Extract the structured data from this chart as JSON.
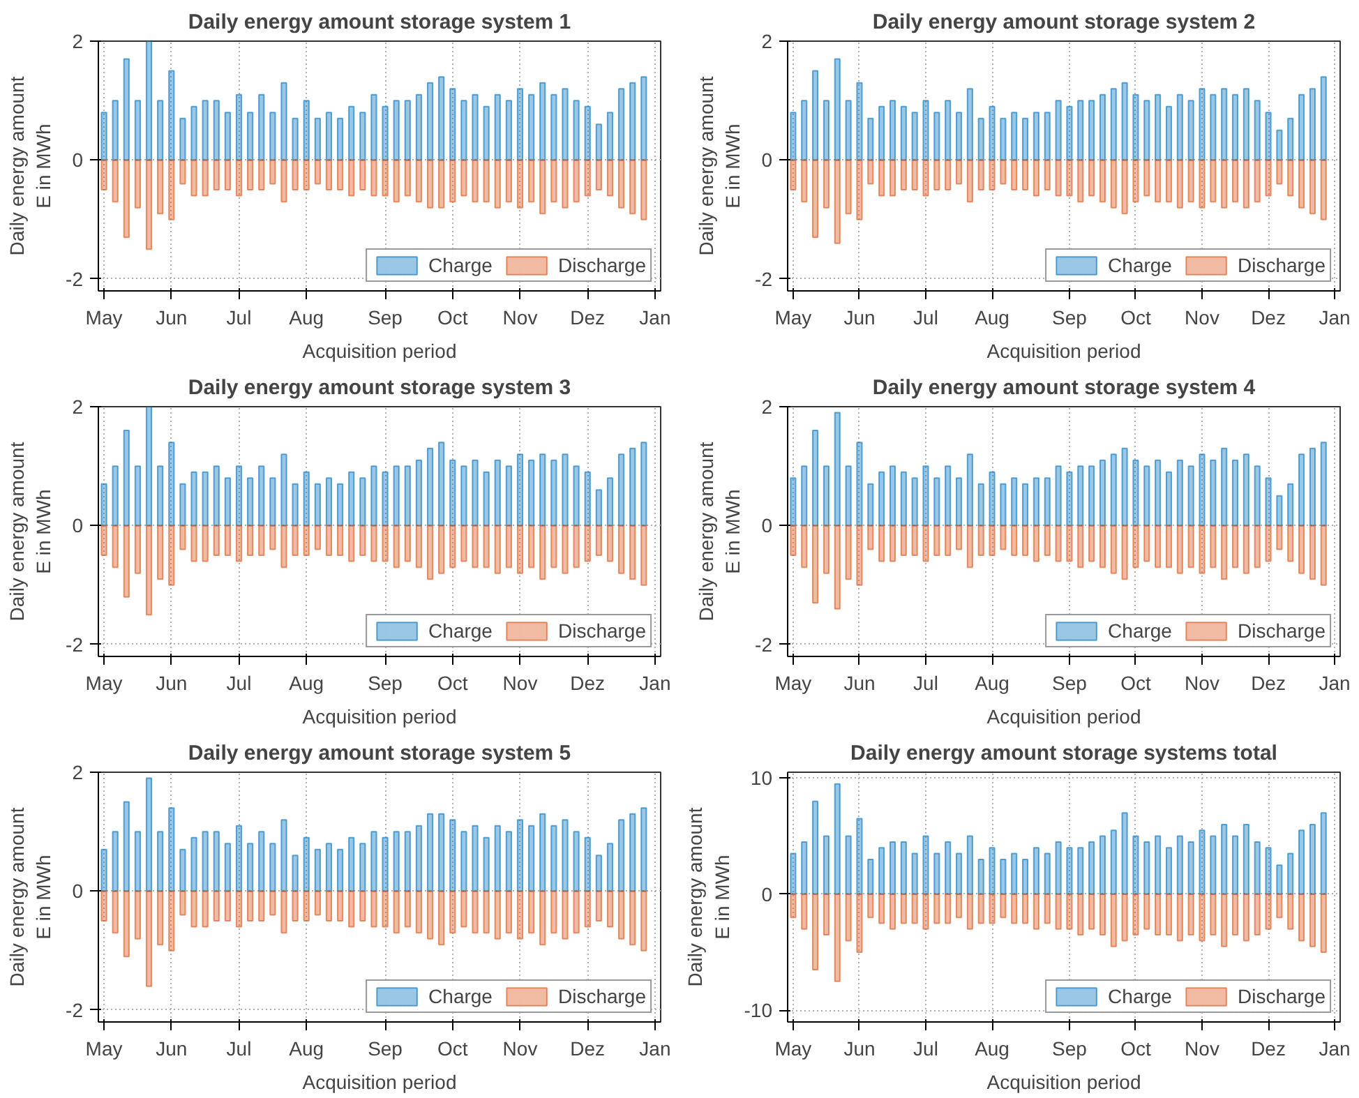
{
  "chart_data": [
    {
      "type": "bar",
      "title": "Daily energy amount storage system 1",
      "xlabel": "Acquisition period",
      "ylabel": "Daily energy amount\nE in MWh",
      "categories": [
        "May",
        null,
        null,
        null,
        null,
        null,
        "Jun",
        null,
        null,
        null,
        null,
        null,
        "Jul",
        null,
        null,
        null,
        null,
        null,
        "Aug",
        null,
        null,
        null,
        null,
        null,
        null,
        "Sep",
        null,
        null,
        null,
        null,
        null,
        "Oct",
        null,
        null,
        null,
        null,
        null,
        "Nov",
        null,
        null,
        null,
        null,
        null,
        "Dez",
        null,
        null,
        null,
        null,
        null,
        "Jan"
      ],
      "series": [
        {
          "name": "Charge",
          "color": "#0072bd",
          "values": [
            0.8,
            1.0,
            1.7,
            1.0,
            2.0,
            1.0,
            1.5,
            0.7,
            0.9,
            1.0,
            1.0,
            0.8,
            1.1,
            0.8,
            1.1,
            0.8,
            1.3,
            0.7,
            1.0,
            0.7,
            0.8,
            0.7,
            0.9,
            0.8,
            1.1,
            0.9,
            1.0,
            1.0,
            1.1,
            1.3,
            1.4,
            1.2,
            1.0,
            1.1,
            0.9,
            1.1,
            1.0,
            1.2,
            1.1,
            1.3,
            1.1,
            1.2,
            1.0,
            0.9,
            0.6,
            0.8,
            1.2,
            1.3,
            1.4,
            null
          ]
        },
        {
          "name": "Discharge",
          "color": "#d95319",
          "values": [
            -0.5,
            -0.7,
            -1.3,
            -0.8,
            -1.5,
            -0.9,
            -1.0,
            -0.4,
            -0.6,
            -0.6,
            -0.5,
            -0.5,
            -0.6,
            -0.5,
            -0.5,
            -0.4,
            -0.7,
            -0.5,
            -0.5,
            -0.4,
            -0.5,
            -0.5,
            -0.6,
            -0.5,
            -0.6,
            -0.6,
            -0.7,
            -0.6,
            -0.7,
            -0.8,
            -0.8,
            -0.7,
            -0.6,
            -0.7,
            -0.7,
            -0.8,
            -0.7,
            -0.8,
            -0.7,
            -0.9,
            -0.7,
            -0.8,
            -0.7,
            -0.6,
            -0.5,
            -0.6,
            -0.8,
            -0.9,
            -1.0,
            null
          ]
        }
      ],
      "ylim": [
        -2.2,
        2
      ],
      "yticks": [
        -2,
        0,
        2
      ],
      "grid": true,
      "legend": "bottom right"
    },
    {
      "type": "bar",
      "title": "Daily energy amount storage system 2",
      "xlabel": "Acquisition period",
      "ylabel": "Daily energy amount\nE in MWh",
      "categories": [
        "May",
        null,
        null,
        null,
        null,
        null,
        "Jun",
        null,
        null,
        null,
        null,
        null,
        "Jul",
        null,
        null,
        null,
        null,
        null,
        "Aug",
        null,
        null,
        null,
        null,
        null,
        null,
        "Sep",
        null,
        null,
        null,
        null,
        null,
        "Oct",
        null,
        null,
        null,
        null,
        null,
        "Nov",
        null,
        null,
        null,
        null,
        null,
        "Dez",
        null,
        null,
        null,
        null,
        null,
        "Jan"
      ],
      "series": [
        {
          "name": "Charge",
          "color": "#0072bd",
          "values": [
            0.8,
            1.0,
            1.5,
            1.0,
            1.7,
            1.0,
            1.3,
            0.7,
            0.9,
            1.0,
            0.9,
            0.8,
            1.0,
            0.8,
            1.0,
            0.8,
            1.2,
            0.7,
            0.9,
            0.7,
            0.8,
            0.7,
            0.8,
            0.8,
            1.0,
            0.9,
            1.0,
            1.0,
            1.1,
            1.2,
            1.3,
            1.1,
            1.0,
            1.1,
            0.9,
            1.1,
            1.0,
            1.2,
            1.1,
            1.2,
            1.1,
            1.2,
            1.0,
            0.8,
            0.5,
            0.7,
            1.1,
            1.2,
            1.4,
            null
          ]
        },
        {
          "name": "Discharge",
          "color": "#d95319",
          "values": [
            -0.5,
            -0.7,
            -1.3,
            -0.8,
            -1.4,
            -0.9,
            -1.0,
            -0.4,
            -0.6,
            -0.6,
            -0.5,
            -0.5,
            -0.6,
            -0.5,
            -0.5,
            -0.4,
            -0.7,
            -0.5,
            -0.5,
            -0.4,
            -0.5,
            -0.5,
            -0.6,
            -0.5,
            -0.6,
            -0.6,
            -0.7,
            -0.6,
            -0.7,
            -0.8,
            -0.9,
            -0.7,
            -0.6,
            -0.7,
            -0.7,
            -0.8,
            -0.7,
            -0.8,
            -0.7,
            -0.8,
            -0.7,
            -0.8,
            -0.7,
            -0.6,
            -0.4,
            -0.6,
            -0.8,
            -0.9,
            -1.0,
            null
          ]
        }
      ],
      "ylim": [
        -2.2,
        2
      ],
      "yticks": [
        -2,
        0,
        2
      ],
      "grid": true,
      "legend": "bottom right"
    },
    {
      "type": "bar",
      "title": "Daily energy amount storage system 3",
      "xlabel": "Acquisition period",
      "ylabel": "Daily energy amount\nE in MWh",
      "categories": [
        "May",
        null,
        null,
        null,
        null,
        null,
        "Jun",
        null,
        null,
        null,
        null,
        null,
        "Jul",
        null,
        null,
        null,
        null,
        null,
        "Aug",
        null,
        null,
        null,
        null,
        null,
        null,
        "Sep",
        null,
        null,
        null,
        null,
        null,
        "Oct",
        null,
        null,
        null,
        null,
        null,
        "Nov",
        null,
        null,
        null,
        null,
        null,
        "Dez",
        null,
        null,
        null,
        null,
        null,
        "Jan"
      ],
      "series": [
        {
          "name": "Charge",
          "color": "#0072bd",
          "values": [
            0.7,
            1.0,
            1.6,
            1.0,
            2.0,
            1.0,
            1.4,
            0.7,
            0.9,
            0.9,
            1.0,
            0.8,
            1.0,
            0.8,
            1.0,
            0.8,
            1.2,
            0.7,
            0.9,
            0.7,
            0.8,
            0.7,
            0.9,
            0.8,
            1.0,
            0.9,
            1.0,
            1.0,
            1.1,
            1.3,
            1.4,
            1.1,
            1.0,
            1.1,
            0.9,
            1.1,
            1.0,
            1.2,
            1.1,
            1.2,
            1.1,
            1.2,
            1.0,
            0.9,
            0.6,
            0.8,
            1.2,
            1.3,
            1.4,
            null
          ]
        },
        {
          "name": "Discharge",
          "color": "#d95319",
          "values": [
            -0.5,
            -0.7,
            -1.2,
            -0.8,
            -1.5,
            -0.9,
            -1.0,
            -0.4,
            -0.6,
            -0.6,
            -0.5,
            -0.5,
            -0.6,
            -0.5,
            -0.5,
            -0.4,
            -0.7,
            -0.5,
            -0.5,
            -0.4,
            -0.5,
            -0.5,
            -0.6,
            -0.5,
            -0.6,
            -0.6,
            -0.7,
            -0.6,
            -0.7,
            -0.9,
            -0.8,
            -0.7,
            -0.6,
            -0.7,
            -0.7,
            -0.8,
            -0.7,
            -0.8,
            -0.7,
            -0.9,
            -0.7,
            -0.8,
            -0.7,
            -0.6,
            -0.5,
            -0.6,
            -0.8,
            -0.9,
            -1.0,
            null
          ]
        }
      ],
      "ylim": [
        -2.2,
        2
      ],
      "yticks": [
        -2,
        0,
        2
      ],
      "grid": true,
      "legend": "bottom right"
    },
    {
      "type": "bar",
      "title": "Daily energy amount storage system 4",
      "xlabel": "Acquisition period",
      "ylabel": "Daily energy amount\nE in MWh",
      "categories": [
        "May",
        null,
        null,
        null,
        null,
        null,
        "Jun",
        null,
        null,
        null,
        null,
        null,
        "Jul",
        null,
        null,
        null,
        null,
        null,
        "Aug",
        null,
        null,
        null,
        null,
        null,
        null,
        "Sep",
        null,
        null,
        null,
        null,
        null,
        "Oct",
        null,
        null,
        null,
        null,
        null,
        "Nov",
        null,
        null,
        null,
        null,
        null,
        "Dez",
        null,
        null,
        null,
        null,
        null,
        "Jan"
      ],
      "series": [
        {
          "name": "Charge",
          "color": "#0072bd",
          "values": [
            0.8,
            1.0,
            1.6,
            1.0,
            1.9,
            1.0,
            1.4,
            0.7,
            0.9,
            1.0,
            0.9,
            0.8,
            1.0,
            0.8,
            1.0,
            0.8,
            1.2,
            0.7,
            0.9,
            0.7,
            0.8,
            0.7,
            0.8,
            0.8,
            1.0,
            0.9,
            1.0,
            1.0,
            1.1,
            1.2,
            1.3,
            1.1,
            1.0,
            1.1,
            0.9,
            1.1,
            1.0,
            1.2,
            1.1,
            1.3,
            1.1,
            1.2,
            1.0,
            0.8,
            0.5,
            0.7,
            1.2,
            1.3,
            1.4,
            null
          ]
        },
        {
          "name": "Discharge",
          "color": "#d95319",
          "values": [
            -0.5,
            -0.7,
            -1.3,
            -0.8,
            -1.4,
            -0.9,
            -1.0,
            -0.4,
            -0.6,
            -0.6,
            -0.5,
            -0.5,
            -0.6,
            -0.5,
            -0.5,
            -0.4,
            -0.7,
            -0.5,
            -0.5,
            -0.4,
            -0.5,
            -0.5,
            -0.6,
            -0.5,
            -0.6,
            -0.6,
            -0.7,
            -0.6,
            -0.7,
            -0.8,
            -0.9,
            -0.7,
            -0.6,
            -0.7,
            -0.7,
            -0.8,
            -0.7,
            -0.8,
            -0.7,
            -0.9,
            -0.7,
            -0.8,
            -0.7,
            -0.6,
            -0.4,
            -0.6,
            -0.8,
            -0.9,
            -1.0,
            null
          ]
        }
      ],
      "ylim": [
        -2.2,
        2
      ],
      "yticks": [
        -2,
        0,
        2
      ],
      "grid": true,
      "legend": "bottom right"
    },
    {
      "type": "bar",
      "title": "Daily energy amount storage system 5",
      "xlabel": "Acquisition period",
      "ylabel": "Daily energy amount\nE in MWh",
      "categories": [
        "May",
        null,
        null,
        null,
        null,
        null,
        "Jun",
        null,
        null,
        null,
        null,
        null,
        "Jul",
        null,
        null,
        null,
        null,
        null,
        "Aug",
        null,
        null,
        null,
        null,
        null,
        null,
        "Sep",
        null,
        null,
        null,
        null,
        null,
        "Oct",
        null,
        null,
        null,
        null,
        null,
        "Nov",
        null,
        null,
        null,
        null,
        null,
        "Dez",
        null,
        null,
        null,
        null,
        null,
        "Jan"
      ],
      "series": [
        {
          "name": "Charge",
          "color": "#0072bd",
          "values": [
            0.7,
            1.0,
            1.5,
            1.0,
            1.9,
            1.0,
            1.4,
            0.7,
            0.9,
            1.0,
            1.0,
            0.8,
            1.1,
            0.8,
            1.0,
            0.8,
            1.2,
            0.6,
            0.9,
            0.7,
            0.8,
            0.7,
            0.9,
            0.8,
            1.0,
            0.9,
            1.0,
            1.0,
            1.1,
            1.3,
            1.3,
            1.2,
            1.0,
            1.1,
            0.9,
            1.1,
            1.0,
            1.2,
            1.1,
            1.3,
            1.1,
            1.2,
            1.0,
            0.9,
            0.6,
            0.8,
            1.2,
            1.3,
            1.4,
            null
          ]
        },
        {
          "name": "Discharge",
          "color": "#d95319",
          "values": [
            -0.5,
            -0.7,
            -1.1,
            -0.8,
            -1.6,
            -0.9,
            -1.0,
            -0.4,
            -0.6,
            -0.6,
            -0.5,
            -0.5,
            -0.6,
            -0.5,
            -0.5,
            -0.4,
            -0.7,
            -0.5,
            -0.5,
            -0.4,
            -0.5,
            -0.5,
            -0.6,
            -0.5,
            -0.6,
            -0.6,
            -0.7,
            -0.6,
            -0.7,
            -0.8,
            -0.9,
            -0.7,
            -0.6,
            -0.7,
            -0.7,
            -0.8,
            -0.7,
            -0.8,
            -0.7,
            -0.9,
            -0.7,
            -0.8,
            -0.7,
            -0.6,
            -0.5,
            -0.6,
            -0.8,
            -0.9,
            -1.0,
            null
          ]
        }
      ],
      "ylim": [
        -2.2,
        2
      ],
      "yticks": [
        -2,
        0,
        2
      ],
      "grid": true,
      "legend": "bottom right"
    },
    {
      "type": "bar",
      "title": "Daily energy amount storage systems total",
      "xlabel": "Acquisition period",
      "ylabel": "Daily energy amount\nE in MWh",
      "categories": [
        "May",
        null,
        null,
        null,
        null,
        null,
        "Jun",
        null,
        null,
        null,
        null,
        null,
        "Jul",
        null,
        null,
        null,
        null,
        null,
        "Aug",
        null,
        null,
        null,
        null,
        null,
        null,
        "Sep",
        null,
        null,
        null,
        null,
        null,
        "Oct",
        null,
        null,
        null,
        null,
        null,
        "Nov",
        null,
        null,
        null,
        null,
        null,
        "Dez",
        null,
        null,
        null,
        null,
        null,
        "Jan"
      ],
      "series": [
        {
          "name": "Charge",
          "color": "#0072bd",
          "values": [
            3.5,
            4.5,
            8,
            5,
            9.5,
            5,
            6.5,
            3,
            4,
            4.5,
            4.5,
            3.5,
            5,
            3.5,
            4.5,
            3.5,
            5,
            3,
            4,
            3,
            3.5,
            3,
            4,
            3.5,
            4.5,
            4,
            4,
            4.5,
            5,
            5.5,
            7,
            5,
            4.5,
            5,
            4,
            5,
            4.5,
            5.5,
            5,
            6,
            5,
            6,
            4.5,
            4,
            2.5,
            3.5,
            5.5,
            6,
            7,
            null
          ]
        },
        {
          "name": "Discharge",
          "color": "#d95319",
          "values": [
            -2,
            -3,
            -6.5,
            -3.5,
            -7.5,
            -4,
            -5,
            -2,
            -2.5,
            -3,
            -2.5,
            -2.5,
            -3,
            -2.5,
            -2.5,
            -2,
            -3,
            -2.5,
            -2.5,
            -2,
            -2.5,
            -2.5,
            -3,
            -2.5,
            -3,
            -3,
            -3.5,
            -3,
            -3.5,
            -4.5,
            -4,
            -3.5,
            -3,
            -3.5,
            -3.5,
            -4,
            -3.5,
            -4,
            -3.5,
            -4.5,
            -3.5,
            -4,
            -3.5,
            -3,
            -2,
            -3,
            -4,
            -4.5,
            -5,
            null
          ]
        }
      ],
      "ylim": [
        -11,
        10.5
      ],
      "yticks": [
        -10,
        0,
        10
      ],
      "grid": true,
      "legend": "bottom right"
    }
  ]
}
